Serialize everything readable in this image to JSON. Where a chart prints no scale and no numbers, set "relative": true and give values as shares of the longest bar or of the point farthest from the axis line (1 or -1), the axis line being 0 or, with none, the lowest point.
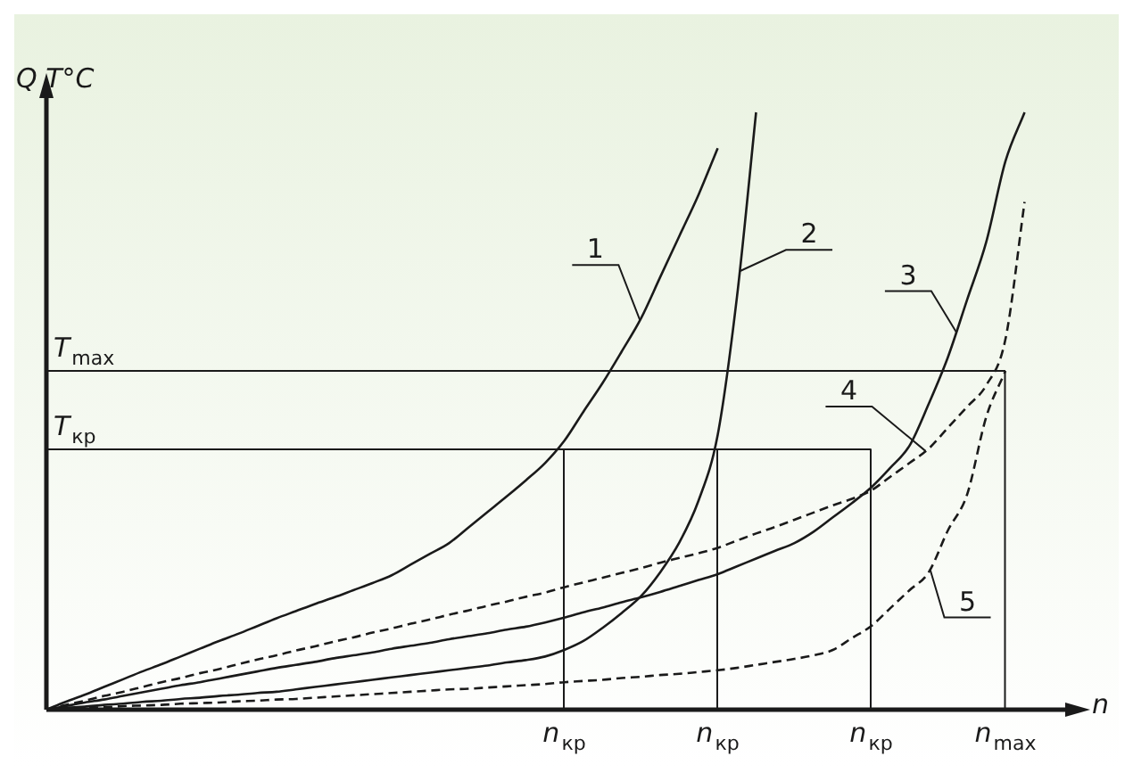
{
  "chart_data": {
    "type": "line",
    "relative": true,
    "ylabel": "Q T°C",
    "xlabel": "n",
    "categories": [
      null,
      null,
      null,
      null,
      null,
      null,
      null,
      null,
      null,
      null,
      null,
      null,
      null,
      null,
      null,
      null,
      null,
      null,
      null,
      null,
      null,
      null,
      null,
      null,
      null,
      null,
      null,
      "n$_{кр}$",
      null,
      null,
      null,
      null,
      null,
      null,
      null,
      "n$_{кр}$",
      null,
      null,
      null,
      null,
      null,
      null,
      null,
      "n$_{кр}$",
      null,
      null,
      null,
      null,
      null,
      null,
      "n$_{max}$",
      null,
      null
    ],
    "ref_lines": [
      {
        "axis": "y",
        "value": 0.567,
        "label": "T$_{max}$"
      },
      {
        "axis": "y",
        "value": 0.436,
        "label": "T$_{кр}$"
      }
    ],
    "series": [
      {
        "color": "#1a1a1a",
        "line_style": "solid",
        "values": [
          0,
          0.013,
          0.025,
          0.038,
          0.051,
          0.064,
          0.076,
          0.089,
          0.102,
          0.115,
          0.127,
          0.14,
          0.153,
          0.165,
          0.177,
          0.188,
          0.2,
          0.212,
          0.225,
          0.243,
          0.261,
          0.279,
          0.305,
          0.331,
          0.357,
          0.384,
          0.413,
          0.45,
          0.499,
          0.547,
          0.6,
          0.655,
          0.724,
          0.793,
          0.862,
          0.94,
          null,
          null,
          null,
          null,
          null,
          null,
          null,
          null,
          null,
          null,
          null,
          null,
          null,
          null,
          null,
          null,
          null
        ]
      },
      {
        "color": "#1a1a1a",
        "line_style": "solid",
        "values": [
          0,
          0.003,
          0.005,
          0.008,
          0.01,
          0.013,
          0.015,
          0.018,
          0.02,
          0.023,
          0.025,
          0.028,
          0.03,
          0.034,
          0.038,
          0.042,
          0.046,
          0.05,
          0.054,
          0.058,
          0.062,
          0.066,
          0.07,
          0.074,
          0.079,
          0.083,
          0.089,
          0.1,
          0.115,
          0.137,
          0.162,
          0.19,
          0.23,
          0.28,
          0.35,
          0.46,
          0.69,
          1,
          null,
          null,
          null,
          null,
          null,
          null,
          null,
          null,
          null,
          null,
          null,
          null,
          null,
          null,
          null
        ]
      },
      {
        "color": "#1a1a1a",
        "line_style": "solid",
        "values": [
          0,
          0.006,
          0.012,
          0.017,
          0.023,
          0.029,
          0.035,
          0.041,
          0.046,
          0.052,
          0.058,
          0.064,
          0.07,
          0.075,
          0.08,
          0.086,
          0.091,
          0.096,
          0.102,
          0.107,
          0.112,
          0.118,
          0.123,
          0.128,
          0.134,
          0.139,
          0.146,
          0.154,
          0.163,
          0.171,
          0.18,
          0.188,
          0.197,
          0.207,
          0.217,
          0.227,
          0.24,
          0.253,
          0.266,
          0.279,
          0.298,
          0.322,
          0.346,
          0.372,
          0.405,
          0.442,
          0.512,
          0.59,
          0.686,
          0.783,
          0.918,
          1,
          null
        ]
      },
      {
        "color": "#1a1a1a",
        "line_style": "dashed",
        "values": [
          0,
          0.008,
          0.015,
          0.023,
          0.03,
          0.038,
          0.046,
          0.053,
          0.061,
          0.068,
          0.076,
          0.084,
          0.091,
          0.099,
          0.106,
          0.114,
          0.121,
          0.129,
          0.136,
          0.144,
          0.151,
          0.159,
          0.166,
          0.174,
          0.181,
          0.189,
          0.196,
          0.205,
          0.213,
          0.221,
          0.229,
          0.237,
          0.246,
          0.254,
          0.262,
          0.271,
          0.283,
          0.295,
          0.306,
          0.318,
          0.33,
          0.342,
          0.353,
          0.367,
          0.39,
          0.413,
          0.437,
          0.472,
          0.507,
          0.543,
          0.62,
          0.85,
          null
        ]
      },
      {
        "color": "#1a1a1a",
        "line_style": "dashed",
        "values": [
          0,
          0.001,
          0.003,
          0.004,
          0.006,
          0.007,
          0.008,
          0.01,
          0.011,
          0.012,
          0.014,
          0.015,
          0.017,
          0.018,
          0.02,
          0.022,
          0.024,
          0.026,
          0.028,
          0.03,
          0.032,
          0.034,
          0.035,
          0.037,
          0.039,
          0.041,
          0.043,
          0.046,
          0.048,
          0.05,
          0.053,
          0.055,
          0.058,
          0.06,
          0.063,
          0.066,
          0.07,
          0.075,
          0.08,
          0.085,
          0.091,
          0.1,
          0.12,
          0.14,
          0.17,
          0.2,
          0.23,
          0.3,
          0.36,
          0.49,
          0.567,
          null,
          null
        ]
      }
    ],
    "annotations": [
      "1",
      "2",
      "3",
      "4",
      "5"
    ],
    "legend": false,
    "marker": "none"
  }
}
